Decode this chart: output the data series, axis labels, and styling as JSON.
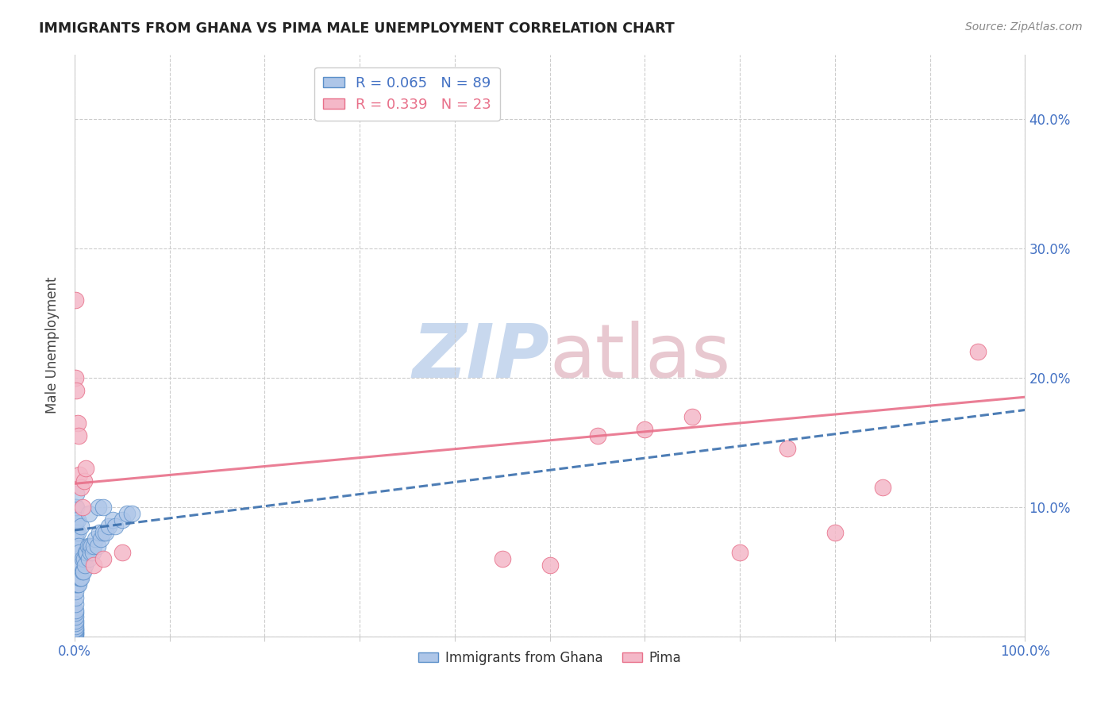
{
  "title": "IMMIGRANTS FROM GHANA VS PIMA MALE UNEMPLOYMENT CORRELATION CHART",
  "source": "Source: ZipAtlas.com",
  "ylabel": "Male Unemployment",
  "xlim": [
    0,
    1.0
  ],
  "ylim": [
    0,
    0.45
  ],
  "xticks": [
    0.0,
    0.1,
    0.2,
    0.3,
    0.4,
    0.5,
    0.6,
    0.7,
    0.8,
    0.9,
    1.0
  ],
  "xticklabels": [
    "0.0%",
    "",
    "",
    "",
    "",
    "",
    "",
    "",
    "",
    "",
    "100.0%"
  ],
  "yticks": [
    0.0,
    0.1,
    0.2,
    0.3,
    0.4
  ],
  "yticklabels": [
    "",
    "10.0%",
    "20.0%",
    "30.0%",
    "40.0%"
  ],
  "blue_R": "0.065",
  "blue_N": "89",
  "pink_R": "0.339",
  "pink_N": "23",
  "blue_color": "#aec6e8",
  "blue_edge": "#5b8fc9",
  "pink_color": "#f4b8c8",
  "pink_edge": "#e8708a",
  "blue_line_color": "#3a6fad",
  "pink_line_color": "#e8708a",
  "watermark_zip_color": "#c8d8ee",
  "watermark_atlas_color": "#e8c8d0",
  "blue_line_x0": 0.0,
  "blue_line_y0": 0.082,
  "blue_line_x1": 1.0,
  "blue_line_y1": 0.175,
  "pink_line_x0": 0.0,
  "pink_line_y0": 0.118,
  "pink_line_x1": 1.0,
  "pink_line_y1": 0.185,
  "blue_x": [
    0.001,
    0.001,
    0.001,
    0.001,
    0.001,
    0.001,
    0.001,
    0.001,
    0.001,
    0.001,
    0.001,
    0.001,
    0.001,
    0.001,
    0.001,
    0.001,
    0.001,
    0.001,
    0.001,
    0.001,
    0.001,
    0.001,
    0.001,
    0.001,
    0.001,
    0.001,
    0.001,
    0.001,
    0.001,
    0.001,
    0.001,
    0.001,
    0.001,
    0.001,
    0.002,
    0.002,
    0.002,
    0.002,
    0.002,
    0.002,
    0.002,
    0.002,
    0.003,
    0.003,
    0.003,
    0.003,
    0.003,
    0.003,
    0.004,
    0.004,
    0.004,
    0.004,
    0.005,
    0.005,
    0.005,
    0.006,
    0.006,
    0.007,
    0.007,
    0.008,
    0.008,
    0.009,
    0.01,
    0.011,
    0.012,
    0.013,
    0.014,
    0.015,
    0.016,
    0.017,
    0.018,
    0.019,
    0.02,
    0.022,
    0.024,
    0.026,
    0.028,
    0.03,
    0.033,
    0.036,
    0.04,
    0.043,
    0.05,
    0.055,
    0.06,
    0.007,
    0.015,
    0.025,
    0.03
  ],
  "blue_y": [
    0.001,
    0.002,
    0.003,
    0.004,
    0.005,
    0.006,
    0.008,
    0.01,
    0.012,
    0.015,
    0.018,
    0.02,
    0.025,
    0.03,
    0.035,
    0.04,
    0.045,
    0.05,
    0.055,
    0.06,
    0.065,
    0.07,
    0.075,
    0.08,
    0.085,
    0.09,
    0.095,
    0.1,
    0.05,
    0.06,
    0.07,
    0.08,
    0.09,
    0.1,
    0.04,
    0.05,
    0.06,
    0.07,
    0.08,
    0.09,
    0.1,
    0.11,
    0.04,
    0.05,
    0.06,
    0.07,
    0.08,
    0.09,
    0.04,
    0.05,
    0.06,
    0.07,
    0.045,
    0.055,
    0.065,
    0.045,
    0.055,
    0.045,
    0.055,
    0.05,
    0.06,
    0.05,
    0.06,
    0.055,
    0.065,
    0.065,
    0.07,
    0.06,
    0.07,
    0.065,
    0.07,
    0.065,
    0.07,
    0.075,
    0.07,
    0.08,
    0.075,
    0.08,
    0.08,
    0.085,
    0.09,
    0.085,
    0.09,
    0.095,
    0.095,
    0.085,
    0.095,
    0.1,
    0.1
  ],
  "pink_x": [
    0.001,
    0.001,
    0.002,
    0.003,
    0.004,
    0.005,
    0.007,
    0.008,
    0.01,
    0.012,
    0.02,
    0.03,
    0.05,
    0.45,
    0.5,
    0.55,
    0.6,
    0.65,
    0.7,
    0.75,
    0.8,
    0.85,
    0.95
  ],
  "pink_y": [
    0.26,
    0.2,
    0.19,
    0.165,
    0.155,
    0.125,
    0.115,
    0.1,
    0.12,
    0.13,
    0.055,
    0.06,
    0.065,
    0.06,
    0.055,
    0.155,
    0.16,
    0.17,
    0.065,
    0.145,
    0.08,
    0.115,
    0.22
  ]
}
